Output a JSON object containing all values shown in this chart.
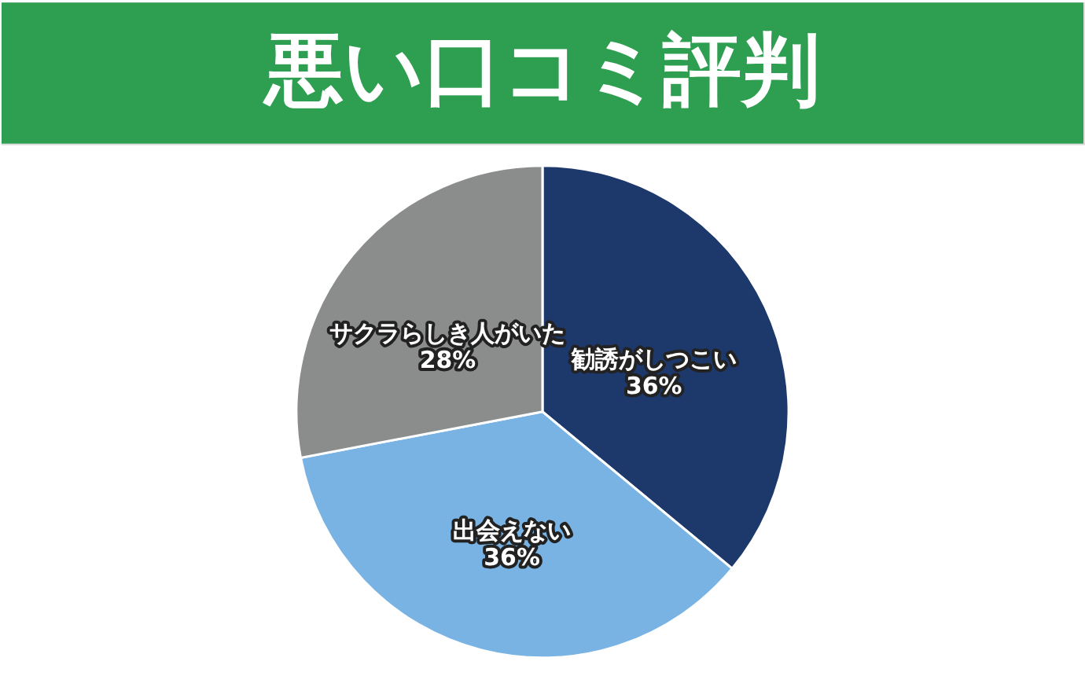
{
  "chart_data": {
    "type": "pie",
    "title": "悪い口コミ評判",
    "categories": [
      "勧誘がしつこい",
      "出会えない",
      "サクラらしき人がいた"
    ],
    "values": [
      36,
      36,
      28
    ],
    "colors": [
      "#1d386b",
      "#79b3e3",
      "#8b8d8d"
    ],
    "value_labels": [
      "36%",
      "36%",
      "28%"
    ]
  }
}
